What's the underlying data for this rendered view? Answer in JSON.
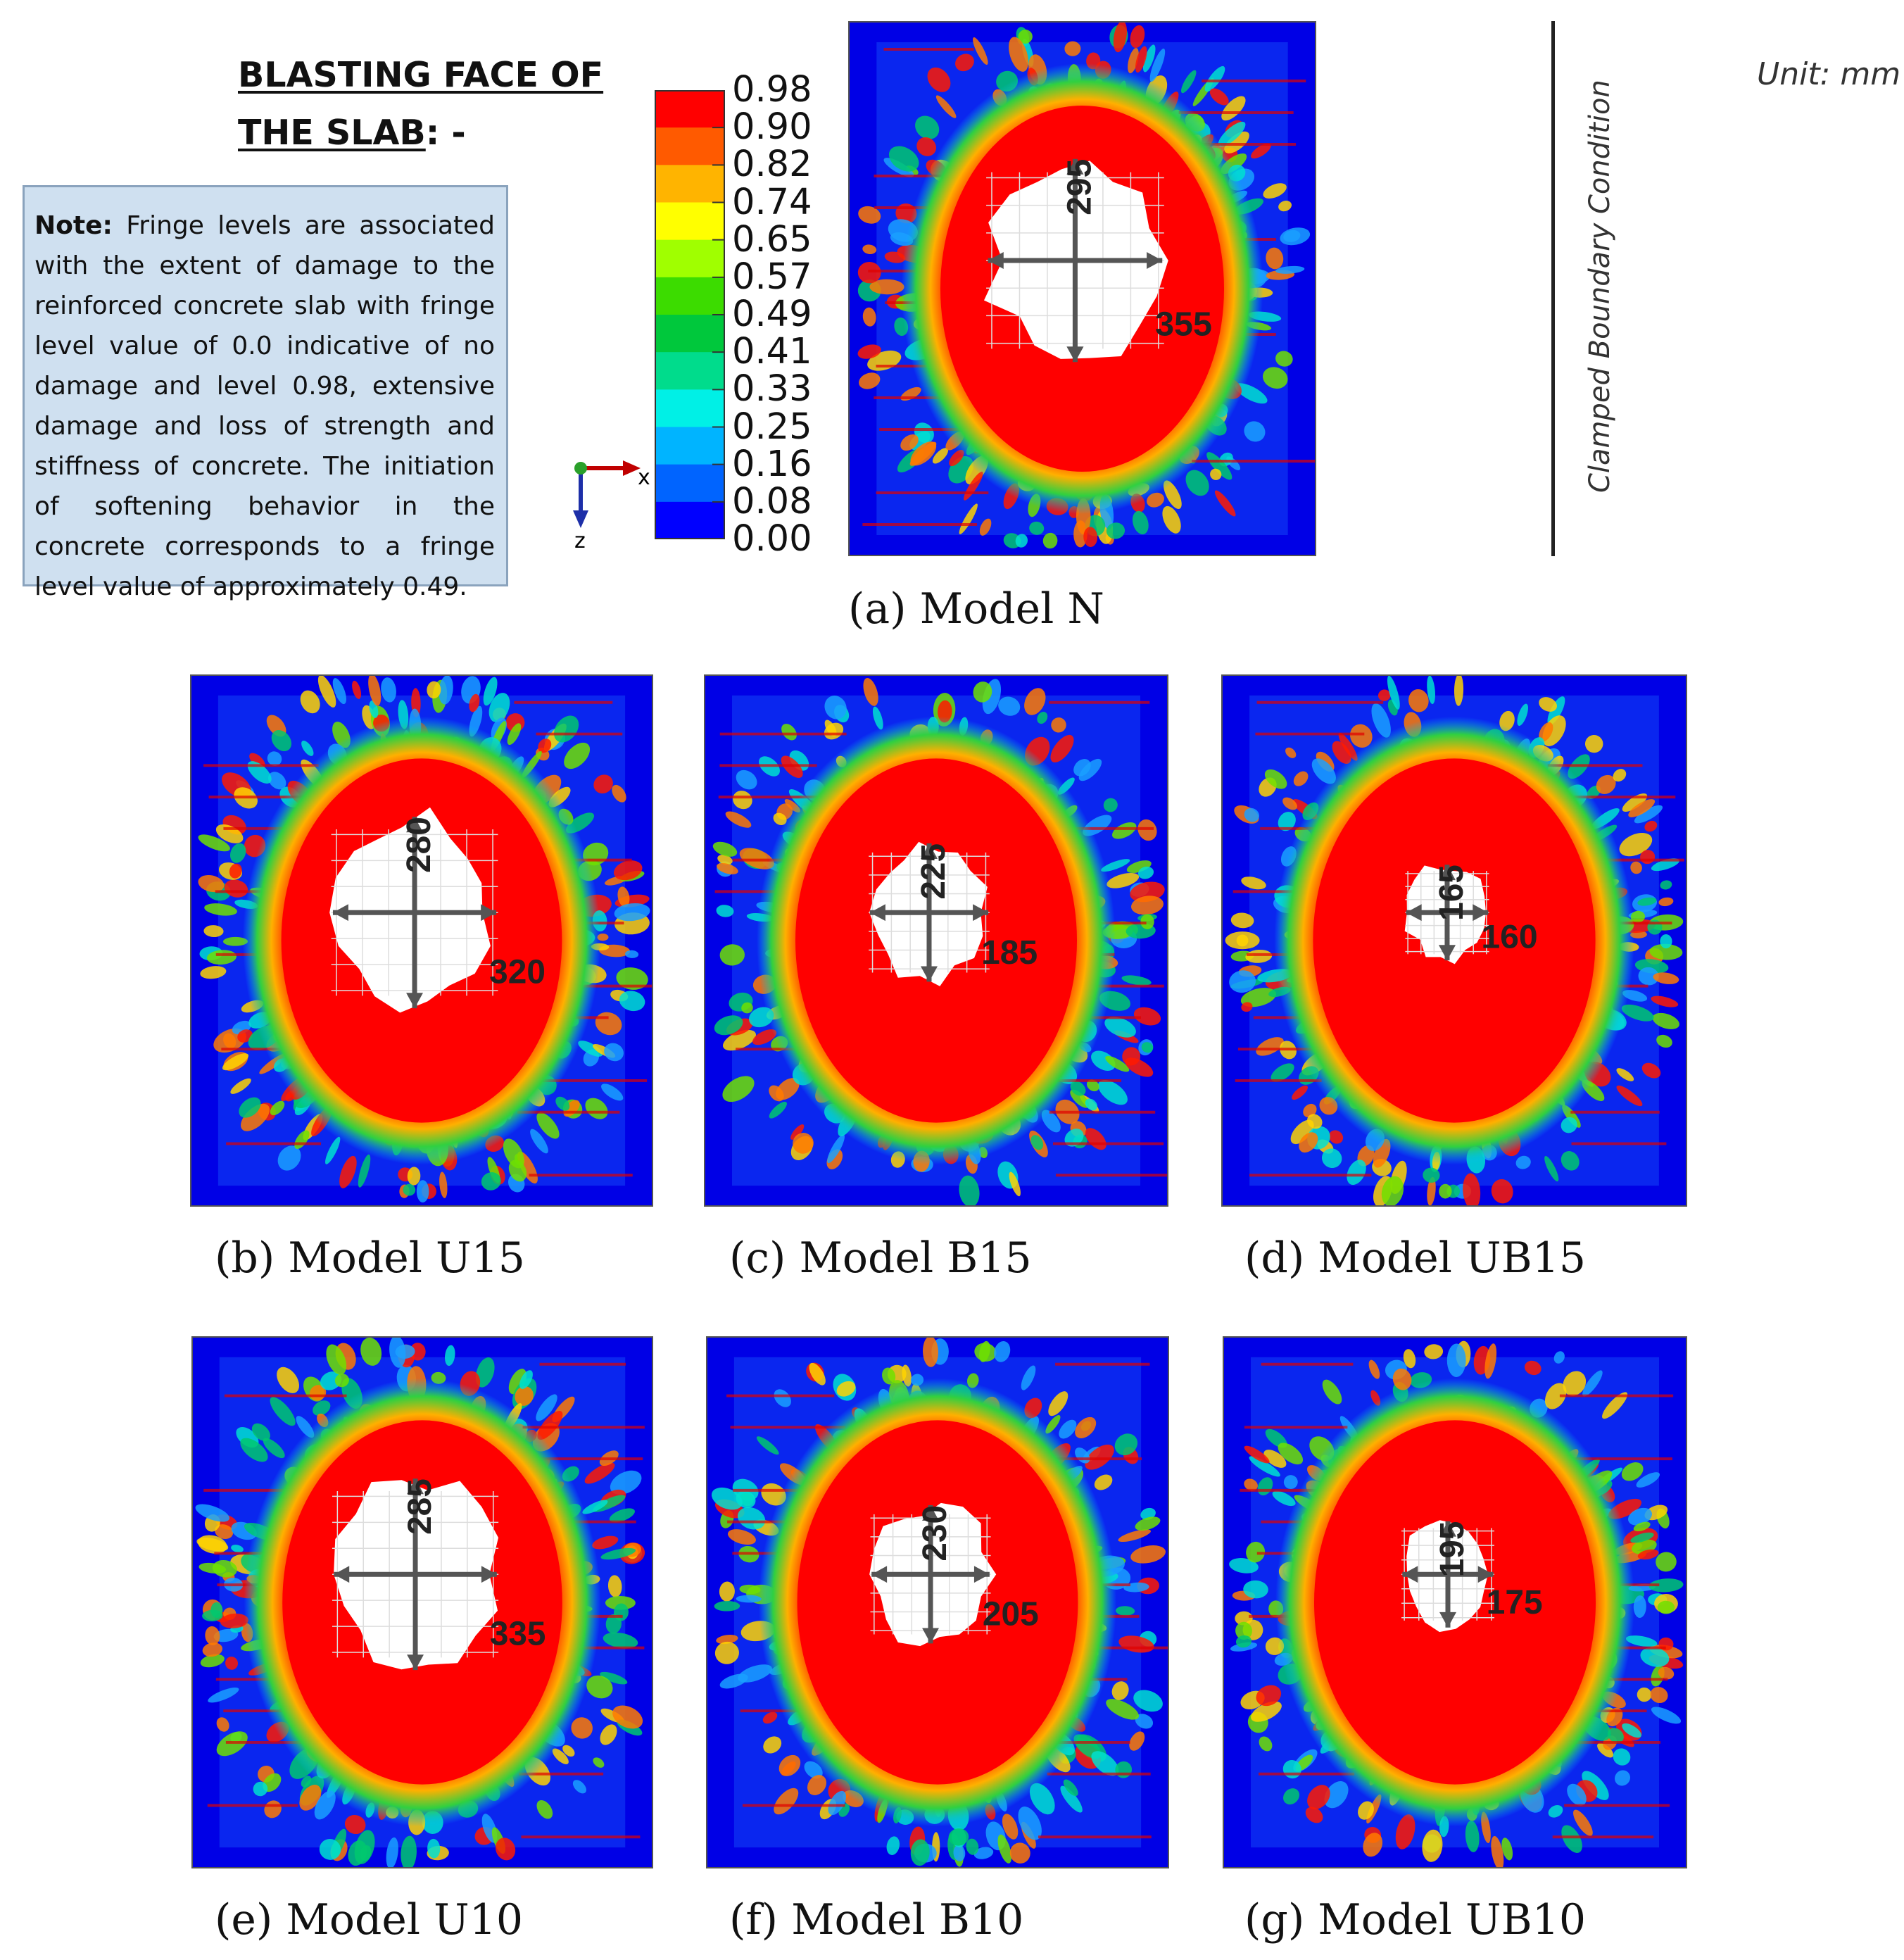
{
  "heading": {
    "line1": "BLASTING  FACE  OF",
    "line2_underlined": "THE SLAB",
    "line2_rest": ": -"
  },
  "note": {
    "label": "Note:",
    "text": " Fringe levels are associated with the extent of damage to the reinforced concrete slab with fringe level value of 0.0 indicative of no damage and level 0.98, extensive damage and loss of strength and stiffness of concrete. The initiation of softening behavior in the concrete corresponds to a fringe level value of approximately 0.49."
  },
  "legend": {
    "levels": [
      "0.98",
      "0.90",
      "0.82",
      "0.74",
      "0.65",
      "0.57",
      "0.49",
      "0.41",
      "0.33",
      "0.25",
      "0.16",
      "0.08",
      "0.00"
    ],
    "colors": [
      "#ff0000",
      "#ff5a00",
      "#ffb400",
      "#ffff00",
      "#a0ff00",
      "#3cdc00",
      "#00c83c",
      "#00dc8c",
      "#00f0e6",
      "#00b4ff",
      "#0064ff",
      "#0000ff"
    ]
  },
  "axes": {
    "x": "x",
    "z": "z"
  },
  "boundary_label": "Clamped Boundary Condition",
  "unit": "Unit: mm",
  "colors": {
    "background": "#0000e6",
    "damage": "#ff0000",
    "hole": "#ffffff"
  },
  "models": [
    {
      "caption": "(a) Model N",
      "vertical": "295",
      "horizontal": "355"
    },
    {
      "caption": "(b) Model U15",
      "vertical": "280",
      "horizontal": "320"
    },
    {
      "caption": "(c) Model B15",
      "vertical": "225",
      "horizontal": "185"
    },
    {
      "caption": "(d) Model UB15",
      "vertical": "165",
      "horizontal": "160"
    },
    {
      "caption": "(e) Model U10",
      "vertical": "285",
      "horizontal": "335"
    },
    {
      "caption": "(f) Model B10",
      "vertical": "230",
      "horizontal": "205"
    },
    {
      "caption": "(g) Model UB10",
      "vertical": "195",
      "horizontal": "175"
    }
  ]
}
